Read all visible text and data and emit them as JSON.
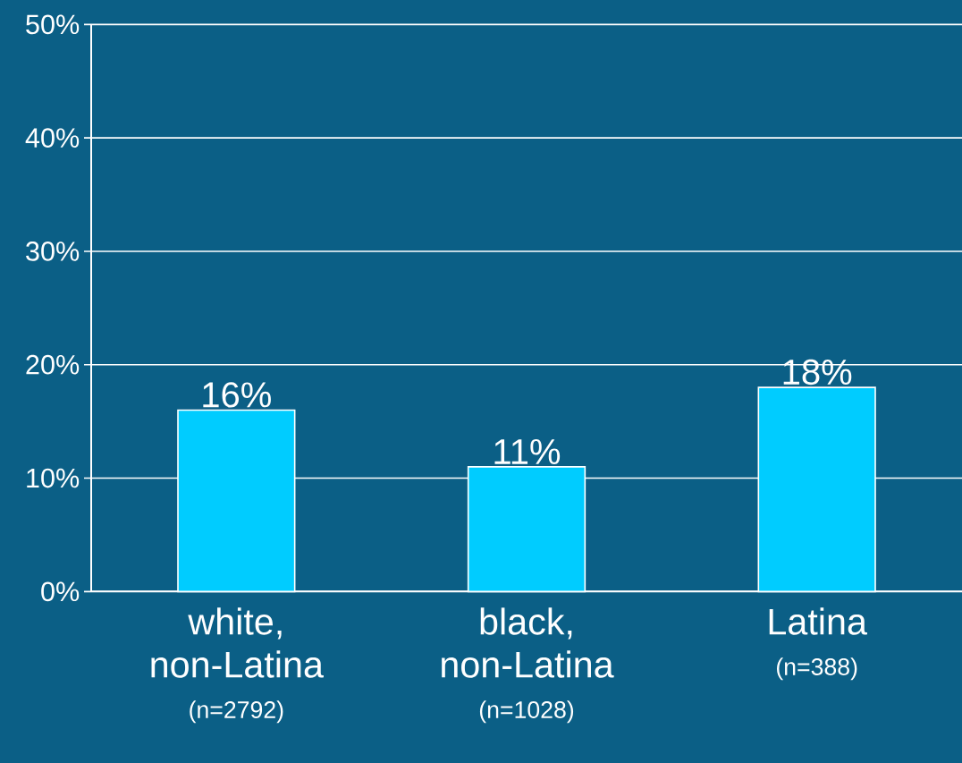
{
  "chart_data": {
    "type": "bar",
    "categories": [
      "white, non-Latina",
      "black, non-Latina",
      "Latina"
    ],
    "values": [
      16,
      11,
      18
    ],
    "value_labels": [
      "16%",
      "11%",
      "18%"
    ],
    "color": "#00ccff",
    "ylim": [
      0,
      50
    ],
    "yticks": [
      {
        "value": 0,
        "label": "0%"
      },
      {
        "value": 10,
        "label": "10%"
      },
      {
        "value": 20,
        "label": "20%"
      },
      {
        "value": 30,
        "label": "30%"
      },
      {
        "value": 40,
        "label": "40%"
      },
      {
        "value": 50,
        "label": "50%"
      }
    ],
    "grid": "y",
    "annotations": [
      "(n=2792)",
      "(n=1028)",
      "(n=388)"
    ]
  }
}
